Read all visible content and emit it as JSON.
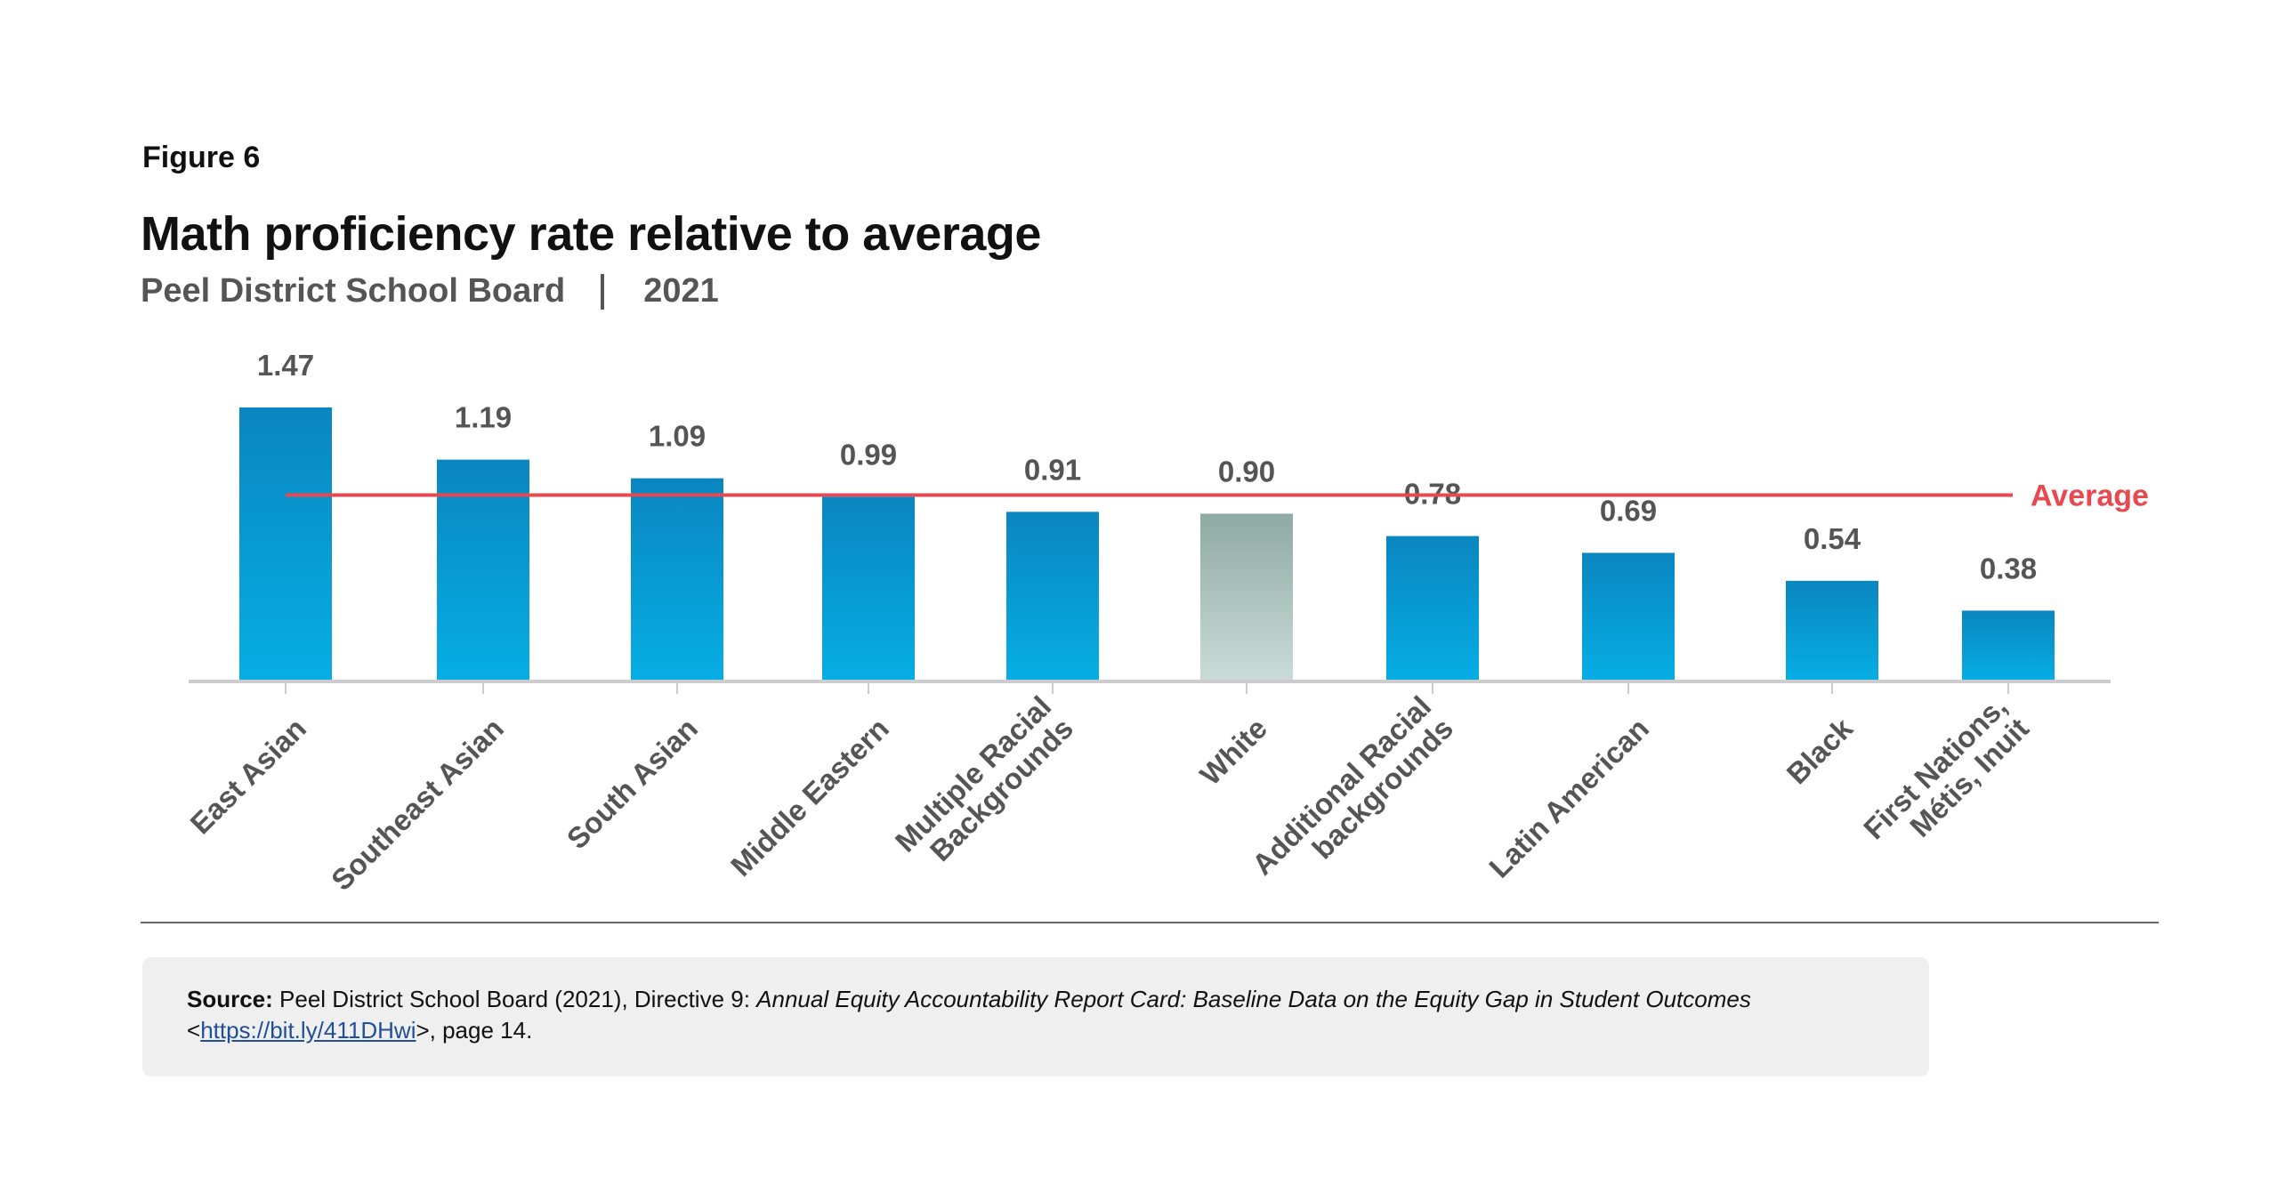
{
  "figure_label": "Figure 6",
  "title": "Math proficiency rate relative to average",
  "subtitle": {
    "organization": "Peel District School Board",
    "year": "2021"
  },
  "chart_data": {
    "type": "bar",
    "title": "Math proficiency rate relative to average",
    "categories": [
      [
        "East Asian"
      ],
      [
        "Southeast Asian"
      ],
      [
        "South Asian"
      ],
      [
        "Middle Eastern"
      ],
      [
        "Multiple Racial",
        "Backgrounds"
      ],
      [
        "White"
      ],
      [
        "Additional Racial",
        "backgrounds"
      ],
      [
        "Latin American"
      ],
      [
        "Black"
      ],
      [
        "First Nations,",
        "Métis, Inuit"
      ]
    ],
    "values": [
      1.47,
      1.19,
      1.09,
      0.99,
      0.91,
      0.9,
      0.78,
      0.69,
      0.54,
      0.38
    ],
    "value_labels": [
      "1.47",
      "1.19",
      "1.09",
      "0.99",
      "0.91",
      "0.90",
      "0.78",
      "0.69",
      "0.54",
      "0.38"
    ],
    "highlight_category_index": 5,
    "reference_line": {
      "label": "Average",
      "value": 1.0
    },
    "ylim": [
      0,
      1.47
    ],
    "xlabel": "",
    "ylabel": "",
    "grid": false,
    "colors": {
      "bar_top": "#0a86c0",
      "bar_bottom": "#06aee5",
      "highlight_top": "#8eaaa3",
      "highlight_bottom": "#cbdcd8",
      "reference_line": "#e8484f",
      "value_label": "#555555",
      "axis": "#cccccc"
    }
  },
  "source": {
    "label": "Source:",
    "text_before": "Peel District School Board (2021), Directive 9: ",
    "title_italic": "Annual Equity Accountability Report Card: Baseline Data on the Equity Gap in Student Outcomes",
    "line2_before": "<",
    "link": "https://bit.ly/411DHwi",
    "line2_after": ">, page 14."
  }
}
